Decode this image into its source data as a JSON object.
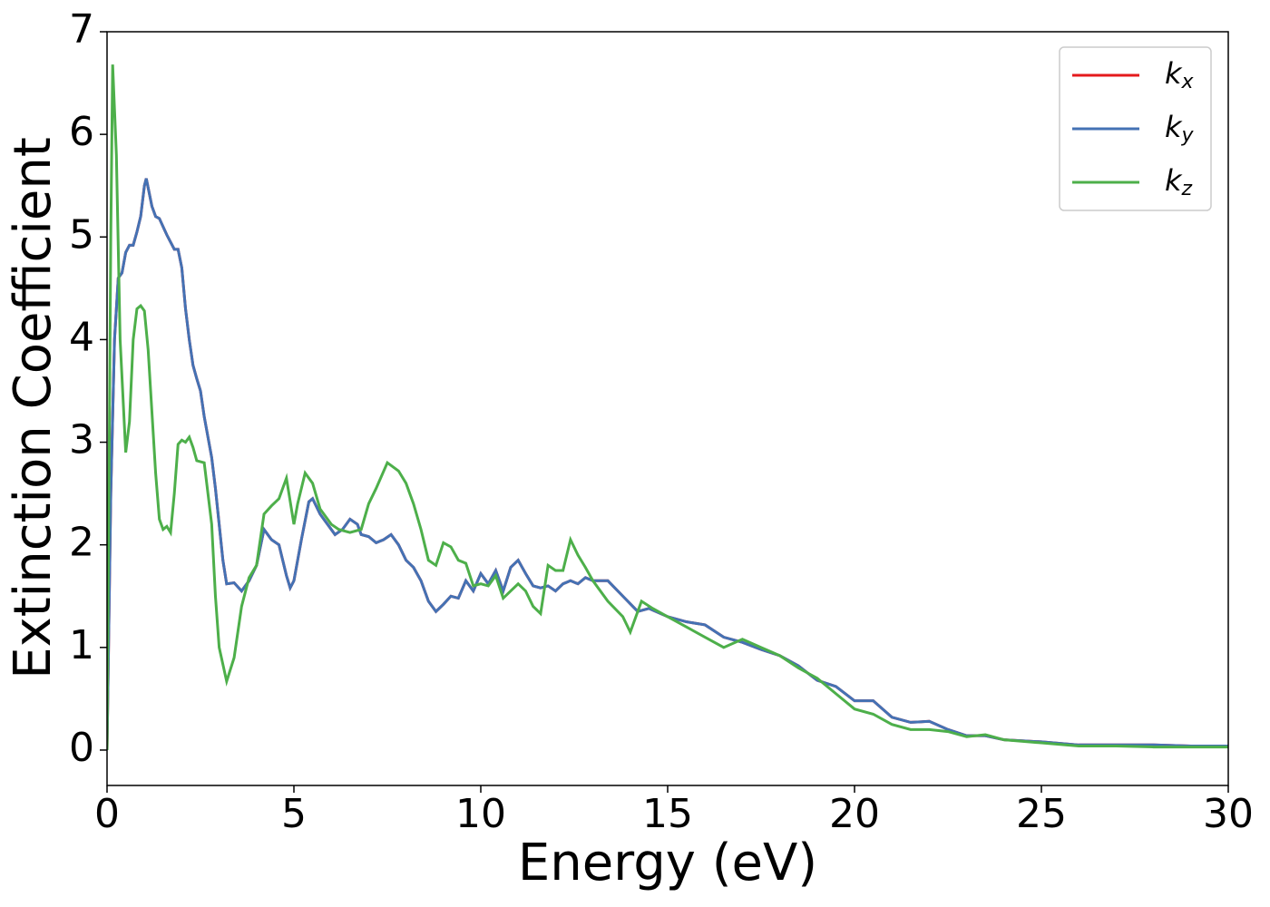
{
  "chart_data": {
    "type": "line",
    "xlabel": "Energy (eV)",
    "ylabel": "Extinction Coefficient",
    "xlim": [
      0,
      30
    ],
    "ylim": [
      -0.345,
      7
    ],
    "xticks": [
      0,
      5,
      10,
      15,
      20,
      25,
      30
    ],
    "yticks": [
      0,
      1,
      2,
      3,
      4,
      5,
      6,
      7
    ],
    "legend": "upper right",
    "series": [
      {
        "name": "kx",
        "color": "#e41a1c",
        "x": [
          0,
          0.1,
          0.2,
          0.3,
          0.4,
          0.5,
          0.6,
          0.7,
          0.8,
          0.9,
          1.0,
          1.05,
          1.2,
          1.3,
          1.4,
          1.5,
          1.6,
          1.7,
          1.8,
          1.9,
          2.0,
          2.1,
          2.2,
          2.3,
          2.4,
          2.5,
          2.6,
          2.7,
          2.8,
          2.9,
          3.0,
          3.1,
          3.2,
          3.4,
          3.6,
          3.8,
          4.0,
          4.2,
          4.4,
          4.6,
          4.8,
          4.9,
          5.0,
          5.2,
          5.4,
          5.5,
          5.7,
          5.9,
          6.1,
          6.3,
          6.5,
          6.7,
          6.8,
          7.0,
          7.2,
          7.4,
          7.6,
          7.8,
          8.0,
          8.2,
          8.4,
          8.6,
          8.8,
          9.0,
          9.2,
          9.4,
          9.6,
          9.8,
          10.0,
          10.2,
          10.4,
          10.6,
          10.8,
          11.0,
          11.2,
          11.4,
          11.6,
          11.8,
          12.0,
          12.2,
          12.4,
          12.6,
          12.8,
          13.0,
          13.4,
          13.8,
          14.2,
          14.5,
          15,
          15.5,
          16,
          16.5,
          17,
          17.5,
          18,
          18.5,
          19,
          19.5,
          20,
          20.5,
          21,
          21.5,
          22,
          22.5,
          23,
          23.5,
          24,
          25,
          26,
          27,
          28,
          29,
          30
        ],
        "values": [
          0,
          2.5,
          4.0,
          4.6,
          4.65,
          4.85,
          4.92,
          4.92,
          5.05,
          5.2,
          5.5,
          5.57,
          5.3,
          5.2,
          5.18,
          5.1,
          5.02,
          4.95,
          4.88,
          4.88,
          4.7,
          4.3,
          4.0,
          3.75,
          3.62,
          3.5,
          3.25,
          3.05,
          2.85,
          2.55,
          2.2,
          1.85,
          1.62,
          1.63,
          1.55,
          1.65,
          1.8,
          2.15,
          2.05,
          2.0,
          1.7,
          1.58,
          1.65,
          2.05,
          2.42,
          2.45,
          2.3,
          2.2,
          2.1,
          2.15,
          2.25,
          2.2,
          2.1,
          2.08,
          2.02,
          2.05,
          2.1,
          2.0,
          1.85,
          1.78,
          1.65,
          1.45,
          1.35,
          1.42,
          1.5,
          1.48,
          1.65,
          1.55,
          1.72,
          1.62,
          1.75,
          1.55,
          1.78,
          1.85,
          1.72,
          1.6,
          1.58,
          1.6,
          1.55,
          1.62,
          1.65,
          1.62,
          1.68,
          1.65,
          1.65,
          1.5,
          1.35,
          1.38,
          1.3,
          1.25,
          1.22,
          1.1,
          1.05,
          0.98,
          0.92,
          0.82,
          0.68,
          0.62,
          0.48,
          0.48,
          0.32,
          0.27,
          0.28,
          0.2,
          0.14,
          0.14,
          0.1,
          0.08,
          0.05,
          0.05,
          0.05,
          0.04,
          0.04
        ]
      },
      {
        "name": "ky",
        "color": "#4472b4",
        "x": [
          0,
          0.1,
          0.2,
          0.3,
          0.4,
          0.5,
          0.6,
          0.7,
          0.8,
          0.9,
          1.0,
          1.05,
          1.2,
          1.3,
          1.4,
          1.5,
          1.6,
          1.7,
          1.8,
          1.9,
          2.0,
          2.1,
          2.2,
          2.3,
          2.4,
          2.5,
          2.6,
          2.7,
          2.8,
          2.9,
          3.0,
          3.1,
          3.2,
          3.4,
          3.6,
          3.8,
          4.0,
          4.2,
          4.4,
          4.6,
          4.8,
          4.9,
          5.0,
          5.2,
          5.4,
          5.5,
          5.7,
          5.9,
          6.1,
          6.3,
          6.5,
          6.7,
          6.8,
          7.0,
          7.2,
          7.4,
          7.6,
          7.8,
          8.0,
          8.2,
          8.4,
          8.6,
          8.8,
          9.0,
          9.2,
          9.4,
          9.6,
          9.8,
          10.0,
          10.2,
          10.4,
          10.6,
          10.8,
          11.0,
          11.2,
          11.4,
          11.6,
          11.8,
          12.0,
          12.2,
          12.4,
          12.6,
          12.8,
          13.0,
          13.4,
          13.8,
          14.2,
          14.5,
          15,
          15.5,
          16,
          16.5,
          17,
          17.5,
          18,
          18.5,
          19,
          19.5,
          20,
          20.5,
          21,
          21.5,
          22,
          22.5,
          23,
          23.5,
          24,
          25,
          26,
          27,
          28,
          29,
          30
        ],
        "values": [
          0,
          2.5,
          4.0,
          4.6,
          4.65,
          4.85,
          4.92,
          4.92,
          5.05,
          5.2,
          5.5,
          5.57,
          5.3,
          5.2,
          5.18,
          5.1,
          5.02,
          4.95,
          4.88,
          4.88,
          4.7,
          4.3,
          4.0,
          3.75,
          3.62,
          3.5,
          3.25,
          3.05,
          2.85,
          2.55,
          2.2,
          1.85,
          1.62,
          1.63,
          1.55,
          1.65,
          1.8,
          2.15,
          2.05,
          2.0,
          1.7,
          1.58,
          1.65,
          2.05,
          2.42,
          2.45,
          2.3,
          2.2,
          2.1,
          2.15,
          2.25,
          2.2,
          2.1,
          2.08,
          2.02,
          2.05,
          2.1,
          2.0,
          1.85,
          1.78,
          1.65,
          1.45,
          1.35,
          1.42,
          1.5,
          1.48,
          1.65,
          1.55,
          1.72,
          1.62,
          1.75,
          1.55,
          1.78,
          1.85,
          1.72,
          1.6,
          1.58,
          1.6,
          1.55,
          1.62,
          1.65,
          1.62,
          1.68,
          1.65,
          1.65,
          1.5,
          1.35,
          1.38,
          1.3,
          1.25,
          1.22,
          1.1,
          1.05,
          0.98,
          0.92,
          0.82,
          0.68,
          0.62,
          0.48,
          0.48,
          0.32,
          0.27,
          0.28,
          0.2,
          0.14,
          0.14,
          0.1,
          0.08,
          0.05,
          0.05,
          0.05,
          0.04,
          0.04
        ]
      },
      {
        "name": "kz",
        "color": "#4daf4a",
        "x": [
          0,
          0.1,
          0.15,
          0.25,
          0.35,
          0.5,
          0.6,
          0.7,
          0.8,
          0.9,
          1.0,
          1.1,
          1.2,
          1.3,
          1.4,
          1.5,
          1.6,
          1.7,
          1.8,
          1.9,
          2.0,
          2.1,
          2.2,
          2.3,
          2.4,
          2.6,
          2.8,
          2.9,
          3.0,
          3.2,
          3.4,
          3.6,
          3.8,
          4.0,
          4.2,
          4.4,
          4.6,
          4.8,
          5.0,
          5.1,
          5.3,
          5.5,
          5.7,
          6.0,
          6.2,
          6.5,
          6.8,
          7.0,
          7.2,
          7.5,
          7.8,
          8.0,
          8.2,
          8.4,
          8.6,
          8.8,
          9.0,
          9.2,
          9.4,
          9.6,
          9.8,
          10.0,
          10.2,
          10.4,
          10.6,
          10.8,
          11.0,
          11.2,
          11.4,
          11.6,
          11.8,
          12.0,
          12.2,
          12.4,
          12.6,
          12.8,
          13.0,
          13.4,
          13.8,
          14.0,
          14.3,
          14.6,
          15,
          15.5,
          16,
          16.5,
          17,
          17.5,
          18,
          18.5,
          19,
          19.5,
          20,
          20.5,
          21,
          21.5,
          22,
          22.5,
          23,
          23.5,
          24,
          25,
          26,
          27,
          28,
          29,
          30
        ],
        "values": [
          0,
          5.0,
          6.68,
          5.8,
          4.0,
          2.9,
          3.2,
          4.0,
          4.3,
          4.33,
          4.28,
          3.9,
          3.3,
          2.7,
          2.25,
          2.15,
          2.18,
          2.12,
          2.5,
          2.98,
          3.02,
          3.0,
          3.05,
          2.95,
          2.82,
          2.8,
          2.2,
          1.5,
          1.0,
          0.67,
          0.9,
          1.4,
          1.68,
          1.8,
          2.3,
          2.38,
          2.45,
          2.65,
          2.2,
          2.4,
          2.7,
          2.6,
          2.35,
          2.2,
          2.15,
          2.12,
          2.15,
          2.4,
          2.55,
          2.8,
          2.72,
          2.6,
          2.4,
          2.15,
          1.85,
          1.8,
          2.02,
          1.98,
          1.85,
          1.82,
          1.6,
          1.62,
          1.6,
          1.7,
          1.48,
          1.55,
          1.62,
          1.55,
          1.4,
          1.33,
          1.8,
          1.75,
          1.75,
          2.05,
          1.9,
          1.78,
          1.65,
          1.45,
          1.3,
          1.15,
          1.45,
          1.38,
          1.3,
          1.2,
          1.1,
          1.0,
          1.08,
          1.0,
          0.92,
          0.8,
          0.7,
          0.55,
          0.4,
          0.35,
          0.25,
          0.2,
          0.2,
          0.18,
          0.13,
          0.15,
          0.1,
          0.07,
          0.04,
          0.04,
          0.03,
          0.03,
          0.03
        ]
      }
    ]
  }
}
